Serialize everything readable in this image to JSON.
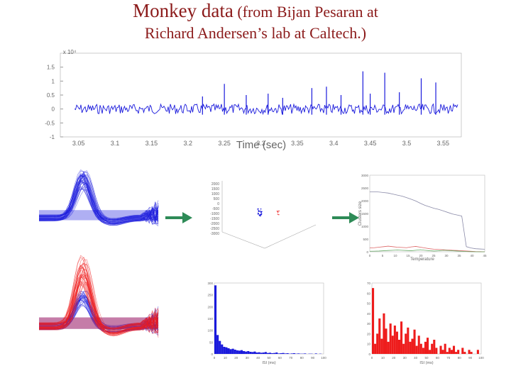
{
  "title": {
    "line1_main": "Monkey data",
    "line1_rest": " (from Bijan Pesaran at",
    "line2": "Richard Andersen’s lab at Caltech.)"
  },
  "colors": {
    "title": "#8b1a1a",
    "blue": "#1a1adc",
    "red": "#ee1c1c",
    "arrow": "#2e8b57"
  },
  "chart_data": [
    {
      "type": "line",
      "id": "raw-trace",
      "ylabel_exp": "x 10⁴",
      "yticks": [
        "1.5",
        "1",
        "0.5",
        "0",
        "-0.5",
        "-1"
      ],
      "xticks": [
        "3.05",
        "3.1",
        "3.15",
        "3.2",
        "3.25",
        "3.3",
        "3.35",
        "3.4",
        "3.45",
        "3.5",
        "3.55"
      ],
      "xlabel": "Time (sec)",
      "series_color": "blue",
      "spike_x": [
        3.22,
        3.25,
        3.28,
        3.31,
        3.33,
        3.37,
        3.39,
        3.41,
        3.44,
        3.45,
        3.47,
        3.49,
        3.52,
        3.54
      ],
      "spike_y": [
        0.45,
        0.9,
        0.5,
        0.55,
        0.4,
        0.75,
        0.8,
        0.5,
        1.35,
        0.55,
        1.3,
        0.6,
        1.1,
        0.95
      ]
    },
    {
      "type": "line",
      "id": "waveforms-blue",
      "series": [
        {
          "color": "blue",
          "peak": 0.7,
          "count": 40
        }
      ]
    },
    {
      "type": "line",
      "id": "waveforms-red-blue",
      "series": [
        {
          "color": "blue",
          "peak": 0.45,
          "count": 30
        },
        {
          "color": "red",
          "peak": 0.9,
          "count": 35
        }
      ]
    },
    {
      "type": "scatter",
      "id": "feature-space-3d",
      "yticks": [
        "2000",
        "1500",
        "1000",
        "500",
        "0",
        "-500",
        "-1000",
        "-1500",
        "-2000",
        "-2500",
        "-3000"
      ]
    },
    {
      "type": "line",
      "id": "temperature-clusters",
      "ylabel": "Clusters size",
      "xlabel": "Temperature",
      "yticks": [
        "3000",
        "2500",
        "2000",
        "1500",
        "1000",
        "500",
        "0"
      ],
      "xticks": [
        "0",
        "5",
        "10",
        "15",
        "20",
        "25",
        "30",
        "35",
        "40",
        "45"
      ],
      "series": [
        {
          "color": "#8a8aa8",
          "values": [
            2350,
            2350,
            2340,
            2320,
            2300,
            2260,
            2220,
            2180,
            2120,
            2060,
            1990,
            1900,
            1820,
            1760,
            1700,
            1660,
            1600,
            1540,
            1480,
            1440,
            1400,
            200,
            150,
            120,
            110,
            100
          ]
        },
        {
          "color": "#d66",
          "values": [
            150,
            160,
            180,
            200,
            220,
            200,
            180,
            170,
            160,
            190,
            210,
            180,
            150,
            120,
            100,
            90,
            80,
            70,
            60,
            50,
            40,
            30,
            20,
            10,
            5,
            0
          ]
        },
        {
          "color": "#6a6",
          "values": [
            20,
            25,
            30,
            40,
            50,
            60,
            70,
            60,
            50,
            40,
            60,
            80,
            60,
            40,
            30,
            40,
            60,
            50,
            40,
            30,
            20,
            10,
            5,
            0,
            0,
            0
          ]
        }
      ]
    },
    {
      "type": "bar",
      "id": "isi-blue",
      "color": "blue",
      "xlabel": "ISI (ms)",
      "yticks": [
        "300",
        "250",
        "200",
        "150",
        "100",
        "50",
        "0"
      ],
      "xticks": [
        "0",
        "10",
        "20",
        "30",
        "40",
        "50",
        "60",
        "70",
        "80",
        "90",
        "100"
      ],
      "values": [
        290,
        80,
        55,
        40,
        30,
        28,
        24,
        20,
        22,
        18,
        15,
        14,
        16,
        12,
        10,
        12,
        9,
        8,
        10,
        6,
        7,
        5,
        6,
        8,
        4,
        5,
        3,
        4,
        6,
        2,
        3,
        4,
        2,
        3,
        1,
        2,
        3,
        1,
        2,
        1,
        1,
        2,
        0,
        1,
        1,
        0,
        2,
        0,
        1,
        0
      ]
    },
    {
      "type": "bar",
      "id": "isi-red",
      "color": "red",
      "xlabel": "ISI (ms)",
      "yticks": [
        "70",
        "60",
        "50",
        "40",
        "30",
        "20",
        "10",
        "0"
      ],
      "xticks": [
        "0",
        "10",
        "20",
        "30",
        "40",
        "50",
        "60",
        "70",
        "80",
        "90",
        "100"
      ],
      "values": [
        65,
        10,
        20,
        35,
        15,
        40,
        25,
        12,
        30,
        18,
        28,
        22,
        14,
        32,
        10,
        20,
        26,
        12,
        15,
        24,
        8,
        18,
        10,
        6,
        12,
        16,
        4,
        10,
        14,
        6,
        0,
        8,
        4,
        10,
        2,
        6,
        4,
        8,
        2,
        4,
        0,
        6,
        2,
        0,
        4,
        2,
        0,
        0,
        4,
        0
      ]
    }
  ]
}
